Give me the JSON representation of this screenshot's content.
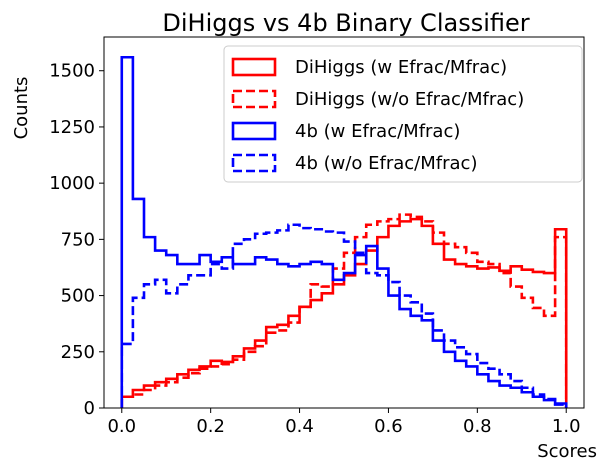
{
  "chart_data": {
    "type": "histogram",
    "title": "DiHiggs vs 4b Binary Classifier",
    "xlabel": "Scores",
    "ylabel": "Counts",
    "xlim": [
      -0.04,
      1.04
    ],
    "ylim": [
      0,
      1650
    ],
    "x_ticks": [
      0.0,
      0.2,
      0.4,
      0.6,
      0.8,
      1.0
    ],
    "x_tick_labels": [
      "0.0",
      "0.2",
      "0.4",
      "0.6",
      "0.8",
      "1.0"
    ],
    "y_ticks": [
      0,
      250,
      500,
      750,
      1000,
      1250,
      1500
    ],
    "y_tick_labels": [
      "0",
      "250",
      "500",
      "750",
      "1000",
      "1250",
      "1500"
    ],
    "legend_position": "top-right",
    "bin_edges": [
      0.0,
      0.025,
      0.05,
      0.075,
      0.1,
      0.125,
      0.15,
      0.175,
      0.2,
      0.225,
      0.25,
      0.275,
      0.3,
      0.325,
      0.35,
      0.375,
      0.4,
      0.425,
      0.45,
      0.475,
      0.5,
      0.525,
      0.55,
      0.575,
      0.6,
      0.625,
      0.65,
      0.675,
      0.7,
      0.725,
      0.75,
      0.775,
      0.8,
      0.825,
      0.85,
      0.875,
      0.9,
      0.925,
      0.95,
      0.975,
      1.0
    ],
    "series": [
      {
        "name": "DiHiggs (w Efrac/Mfrac)",
        "color": "#ff0000",
        "linestyle": "solid",
        "values": [
          50,
          80,
          100,
          115,
          130,
          150,
          170,
          185,
          210,
          205,
          230,
          265,
          300,
          360,
          370,
          410,
          450,
          480,
          510,
          550,
          590,
          640,
          700,
          760,
          810,
          830,
          840,
          810,
          730,
          660,
          640,
          630,
          620,
          625,
          610,
          630,
          615,
          605,
          600,
          795
        ]
      },
      {
        "name": "DiHiggs (w/o Efrac/Mfrac)",
        "color": "#ff0000",
        "linestyle": "dashed",
        "values": [
          50,
          60,
          80,
          100,
          115,
          135,
          155,
          175,
          185,
          195,
          215,
          250,
          275,
          335,
          345,
          380,
          450,
          550,
          540,
          620,
          690,
          760,
          815,
          830,
          840,
          860,
          850,
          830,
          780,
          730,
          715,
          690,
          650,
          640,
          600,
          540,
          490,
          445,
          410,
          760
        ]
      },
      {
        "name": "4b (w Efrac/Mfrac)",
        "color": "#0000ff",
        "linestyle": "solid",
        "values": [
          1560,
          930,
          760,
          700,
          680,
          640,
          640,
          680,
          650,
          670,
          640,
          640,
          670,
          660,
          640,
          630,
          640,
          650,
          640,
          570,
          600,
          680,
          720,
          620,
          500,
          440,
          410,
          390,
          300,
          250,
          210,
          185,
          150,
          120,
          100,
          90,
          70,
          50,
          35,
          20
        ]
      },
      {
        "name": "4b (w/o Efrac/Mfrac)",
        "color": "#0000ff",
        "linestyle": "dashed",
        "values": [
          285,
          490,
          550,
          570,
          510,
          550,
          590,
          590,
          640,
          620,
          730,
          750,
          775,
          780,
          790,
          815,
          800,
          795,
          785,
          780,
          740,
          690,
          600,
          590,
          560,
          500,
          470,
          420,
          345,
          300,
          270,
          240,
          200,
          175,
          150,
          120,
          90,
          60,
          40,
          15
        ]
      }
    ]
  }
}
